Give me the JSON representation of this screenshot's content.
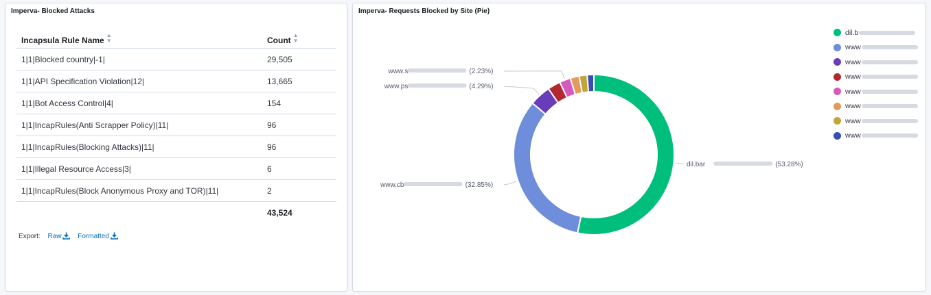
{
  "left_panel": {
    "title": "Imperva- Blocked Attacks",
    "columns": [
      "Incapsula Rule Name",
      "Count"
    ],
    "rows": [
      [
        "1|1|Blocked country|-1|",
        "29,505"
      ],
      [
        "1|1|API Specification Violation|12|",
        "13,665"
      ],
      [
        "1|1|Bot Access Control|4|",
        "154"
      ],
      [
        "1|1|IncapRules(Anti Scrapper Policy)|11|",
        "96"
      ],
      [
        "1|1|IncapRules(Blocking Attacks)|11|",
        "96"
      ],
      [
        "1|1|Illegal Resource Access|3|",
        "6"
      ],
      [
        "1|1|IncapRules(Block Anonymous Proxy and TOR)|11|",
        "2"
      ]
    ],
    "total": "43,524",
    "export": {
      "label": "Export:",
      "raw": "Raw",
      "formatted": "Formatted"
    },
    "icons": {
      "sort": "sort-icon",
      "download": "download-icon"
    }
  },
  "right_panel": {
    "title": "Imperva- Requests Blocked by Site (Pie)",
    "legend": [
      {
        "label": "dil.b",
        "color": "#00bf7d"
      },
      {
        "label": "www",
        "color": "#6e8ddb"
      },
      {
        "label": "www",
        "color": "#6a3db8"
      },
      {
        "label": "www",
        "color": "#b3282f"
      },
      {
        "label": "www",
        "color": "#d65abd"
      },
      {
        "label": "www",
        "color": "#e39a5a"
      },
      {
        "label": "www",
        "color": "#c2a43d"
      },
      {
        "label": "www",
        "color": "#3a4db5"
      }
    ]
  },
  "chart_data": {
    "type": "pie",
    "donut": true,
    "title": "Imperva- Requests Blocked by Site (Pie)",
    "slices": [
      {
        "label": "dil.bar",
        "value": 53.28,
        "color": "#00bf7d",
        "text": "(53.28%)"
      },
      {
        "label": "www.cb",
        "value": 32.85,
        "color": "#6e8ddb",
        "text": "(32.85%)"
      },
      {
        "label": "www.ps",
        "value": 4.29,
        "color": "#6a3db8",
        "text": "(4.29%)"
      },
      {
        "label": "www",
        "value": 2.6,
        "color": "#b3282f",
        "text": ""
      },
      {
        "label": "www.s",
        "value": 2.23,
        "color": "#d65abd",
        "text": "(2.23%)"
      },
      {
        "label": "www",
        "value": 1.8,
        "color": "#e39a5a",
        "text": ""
      },
      {
        "label": "www",
        "value": 1.6,
        "color": "#c2a43d",
        "text": ""
      },
      {
        "label": "www",
        "value": 1.35,
        "color": "#3a4db5",
        "text": ""
      }
    ]
  }
}
